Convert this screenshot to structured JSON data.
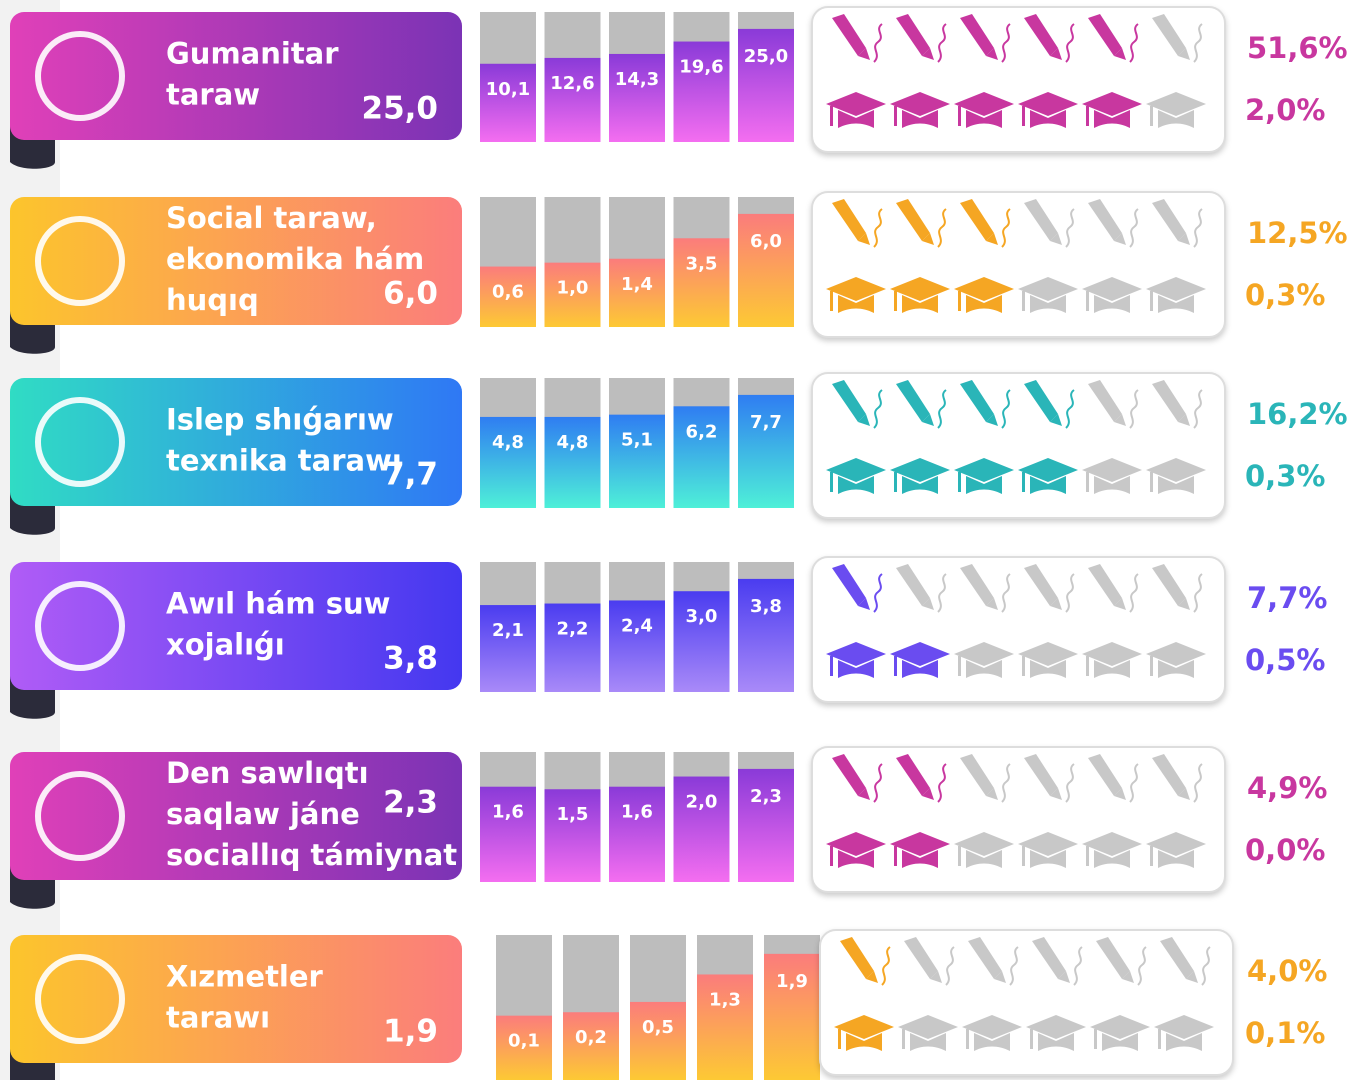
{
  "rows": [
    {
      "label_lines": [
        "Gumanitar",
        "taraw"
      ],
      "total": "25,0",
      "bars": [
        10.1,
        12.6,
        14.3,
        19.6,
        25.0
      ],
      "bar_labels": [
        "10,1",
        "12,6",
        "14,3",
        "19,6",
        "25,0"
      ],
      "pens": 5,
      "caps": 5,
      "pen_pct": "51,6%",
      "cap_pct": "2,0%",
      "colors": [
        "#e040b8",
        "#7b33b5",
        "#f46ef0",
        "#8a3ad8",
        "#c8379f"
      ]
    },
    {
      "label_lines": [
        "Social taraw,",
        " ekonomika hám",
        "huqıq"
      ],
      "total": "6,0",
      "bars": [
        0.6,
        1.0,
        1.4,
        3.5,
        6.0
      ],
      "bar_labels": [
        "0,6",
        "1,0",
        "1,4",
        "3,5",
        "6,0"
      ],
      "pens": 3,
      "caps": 3,
      "pen_pct": "12,5%",
      "cap_pct": "0,3%",
      "colors": [
        "#fcc52c",
        "#fb7d7c",
        "#fdc934",
        "#fb7c7c",
        "#f5a623"
      ]
    },
    {
      "label_lines": [
        "Islep shıǵarıw",
        "texnika tarawı"
      ],
      "total": "7,7",
      "bars": [
        4.8,
        4.8,
        5.1,
        6.2,
        7.7
      ],
      "bar_labels": [
        "4,8",
        "4,8",
        "5,1",
        "6,2",
        "7,7"
      ],
      "pens": 4,
      "caps": 4,
      "pen_pct": "16,2%",
      "cap_pct": "0,3%",
      "colors": [
        "#30dcc4",
        "#2f78f5",
        "#4ef0d8",
        "#2f7df2",
        "#2ab5b8"
      ]
    },
    {
      "label_lines": [
        "Awıl hám suw",
        "xojalıǵı"
      ],
      "total": "3,8",
      "bars": [
        2.1,
        2.2,
        2.4,
        3.0,
        3.8
      ],
      "bar_labels": [
        "2,1",
        "2,2",
        "2,4",
        "3,0",
        "3,8"
      ],
      "pens": 1,
      "caps": 2,
      "pen_pct": "7,7%",
      "cap_pct": "0,5%",
      "colors": [
        "#b05cf6",
        "#4438f0",
        "#a98af8",
        "#4a3cf0",
        "#6a4cf0"
      ]
    },
    {
      "label_lines": [
        "Den sawlıqtı",
        "saqlaw jáne",
        "sociallıq támiynat"
      ],
      "total": "2,3",
      "bars": [
        1.6,
        1.5,
        1.6,
        2.0,
        2.3
      ],
      "bar_labels": [
        "1,6",
        "1,5",
        "1,6",
        "2,0",
        "2,3"
      ],
      "pens": 2,
      "caps": 2,
      "pen_pct": "4,9%",
      "cap_pct": "0,0%",
      "colors": [
        "#e040b8",
        "#7b33b5",
        "#f46ef0",
        "#8a3ad8",
        "#c8379f"
      ]
    },
    {
      "label_lines": [
        "Xızmetler",
        "tarawı"
      ],
      "total": "1,9",
      "bars": [
        0.1,
        0.2,
        0.5,
        1.3,
        1.9
      ],
      "bar_labels": [
        "0,1",
        "0,2",
        "0,5",
        "1,3",
        "1,9"
      ],
      "pens": 1,
      "caps": 1,
      "pen_pct": "4,0%",
      "cap_pct": "0,1%",
      "colors": [
        "#fcc52c",
        "#fb7d7c",
        "#fdc934",
        "#fb7c7c",
        "#f5a623"
      ]
    }
  ]
}
